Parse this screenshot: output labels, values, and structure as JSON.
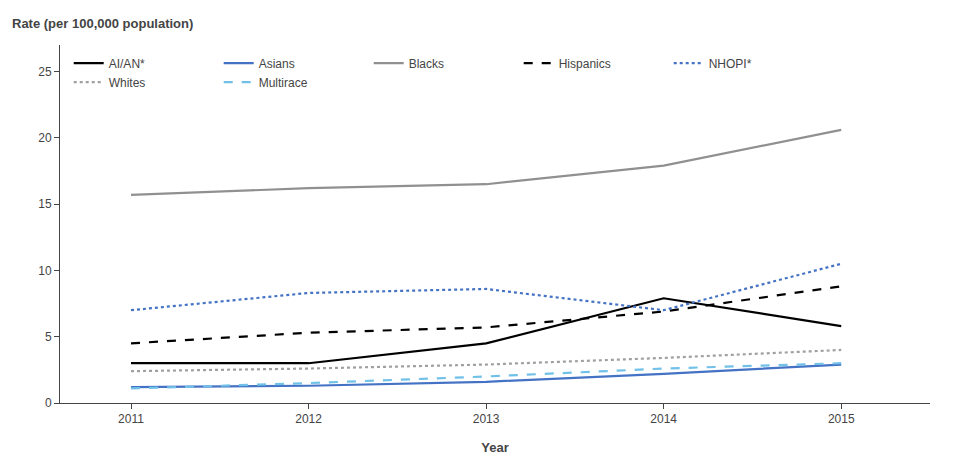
{
  "chart_data": {
    "type": "line",
    "xlabel": "Year",
    "ylabel": "Rate (per 100,000 population)",
    "x": [
      2011,
      2012,
      2013,
      2014,
      2015
    ],
    "series": [
      {
        "name": "AI/AN*",
        "color": "#000000",
        "line_style": "solid",
        "values": [
          3.0,
          3.0,
          4.5,
          7.9,
          5.8
        ]
      },
      {
        "name": "Asians",
        "color": "#4472C4",
        "line_style": "solid",
        "values": [
          1.2,
          1.3,
          1.6,
          2.2,
          2.9
        ]
      },
      {
        "name": "Blacks",
        "color": "#909090",
        "line_style": "solid",
        "values": [
          15.7,
          16.2,
          16.5,
          17.9,
          20.6
        ]
      },
      {
        "name": "Hispanics",
        "color": "#000000",
        "line_style": "dashed",
        "values": [
          4.5,
          5.3,
          5.7,
          6.9,
          8.8
        ]
      },
      {
        "name": "NHOPI*",
        "color": "#4472C4",
        "line_style": "dotted",
        "values": [
          7.0,
          8.3,
          8.6,
          7.0,
          10.5
        ]
      },
      {
        "name": "Whites",
        "color": "#A0A0A0",
        "line_style": "dotted",
        "values": [
          2.4,
          2.6,
          2.9,
          3.4,
          4.0
        ]
      },
      {
        "name": "Multirace",
        "color": "#70C0E8",
        "line_style": "dashed",
        "values": [
          1.1,
          1.5,
          2.0,
          2.6,
          3.0
        ]
      }
    ],
    "xlim": [
      2010.6,
      2015.5
    ],
    "xticks": [
      2011,
      2012,
      2013,
      2014,
      2015
    ],
    "ylim": [
      0,
      27
    ],
    "yticks": [
      0,
      5,
      10,
      15,
      20,
      25
    ],
    "grid": false,
    "legend": "upper left"
  }
}
